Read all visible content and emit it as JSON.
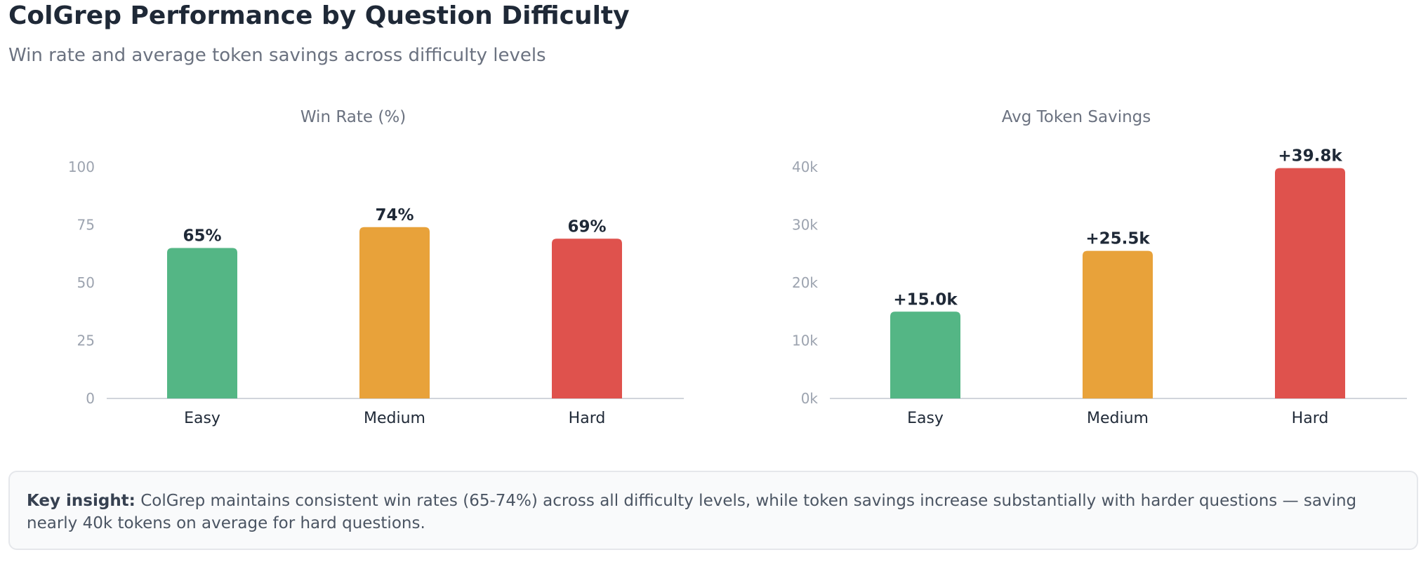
{
  "header": {
    "title": "ColGrep Performance by Question Difficulty",
    "subtitle": "Win rate and average token savings across difficulty levels"
  },
  "colors": {
    "easy": "#54b685",
    "medium": "#e8a23a",
    "hard": "#df524d"
  },
  "chart_data": [
    {
      "type": "bar",
      "title": "Win Rate (%)",
      "categories": [
        "Easy",
        "Medium",
        "Hard"
      ],
      "values": [
        65,
        74,
        69
      ],
      "data_labels": [
        "65%",
        "74%",
        "69%"
      ],
      "yticks": [
        0,
        25,
        50,
        75,
        100
      ],
      "ytick_labels": [
        "0",
        "25",
        "50",
        "75",
        "100"
      ],
      "ylim": [
        0,
        100
      ],
      "xlabel": "",
      "ylabel": "",
      "grid": false
    },
    {
      "type": "bar",
      "title": "Avg Token Savings",
      "categories": [
        "Easy",
        "Medium",
        "Hard"
      ],
      "values": [
        15000,
        25500,
        39800
      ],
      "data_labels": [
        "+15.0k",
        "+25.5k",
        "+39.8k"
      ],
      "yticks": [
        0,
        10000,
        20000,
        30000,
        40000
      ],
      "ytick_labels": [
        "0k",
        "10k",
        "20k",
        "30k",
        "40k"
      ],
      "ylim": [
        0,
        40000
      ],
      "xlabel": "",
      "ylabel": "",
      "grid": false
    }
  ],
  "insight": {
    "lead": "Key insight:",
    "text": " ColGrep maintains consistent win rates (65-74%) across all difficulty levels, while token savings increase substantially with harder questions — saving nearly 40k tokens on average for hard questions."
  }
}
